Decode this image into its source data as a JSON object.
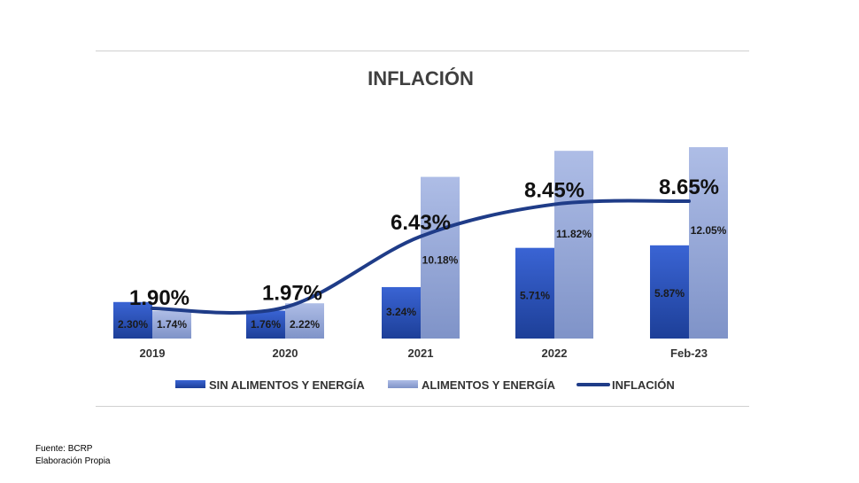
{
  "chart_data": {
    "type": "bar",
    "title": "INFLACIÓN",
    "categories": [
      "2019",
      "2020",
      "2021",
      "2022",
      "Feb-23"
    ],
    "series": [
      {
        "name": "SIN ALIMENTOS Y ENERGÍA",
        "kind": "bar",
        "color": "#2a52be",
        "values": [
          2.3,
          1.76,
          3.24,
          5.71,
          5.87
        ],
        "labels": [
          "2.30%",
          "1.76%",
          "3.24%",
          "5.71%",
          "5.87%"
        ]
      },
      {
        "name": "ALIMENTOS Y ENERGÍA",
        "kind": "bar",
        "color": "#9fb0dc",
        "values": [
          1.74,
          2.22,
          10.18,
          11.82,
          12.05
        ],
        "labels": [
          "1.74%",
          "2.22%",
          "10.18%",
          "11.82%",
          "12.05%"
        ]
      },
      {
        "name": "INFLACIÓN",
        "kind": "line",
        "color": "#1f3c88",
        "values": [
          1.9,
          1.97,
          6.43,
          8.45,
          8.65
        ],
        "labels": [
          "1.90%",
          "1.97%",
          "6.43%",
          "8.45%",
          "8.65%"
        ]
      }
    ],
    "ylim": [
      0,
      12.5
    ],
    "grid": false,
    "legend_position": "bottom"
  },
  "footer": {
    "source": "Fuente: BCRP",
    "note": "Elaboración Propia"
  }
}
